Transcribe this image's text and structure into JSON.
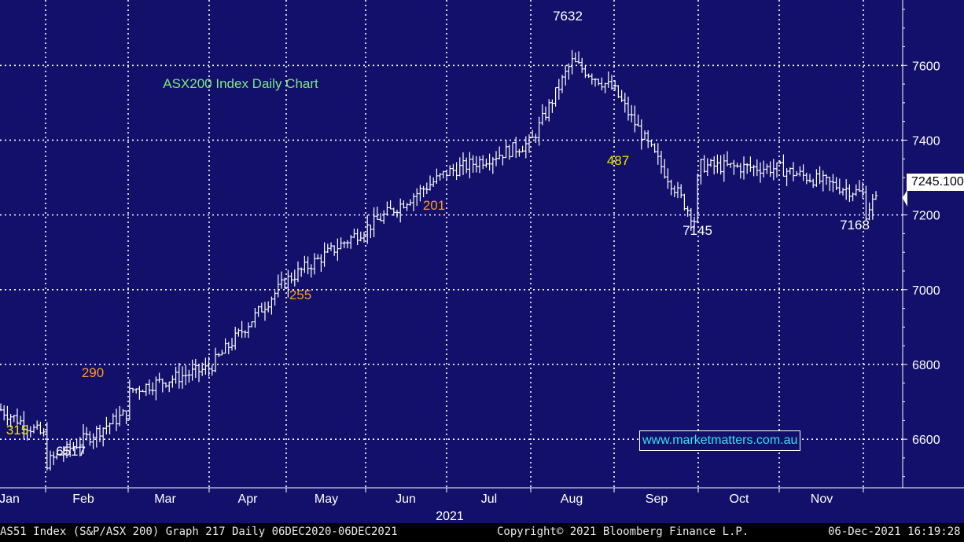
{
  "chart_data": {
    "type": "bar",
    "subtype": "ohlc",
    "title": "ASX200 Index Daily Chart",
    "x_axis": {
      "labels": [
        "Jan",
        "Feb",
        "Mar",
        "Apr",
        "May",
        "Jun",
        "Jul",
        "Aug",
        "Sep",
        "Oct",
        "Nov"
      ],
      "year_label": "2021"
    },
    "y_axis": {
      "ticks": [
        6600,
        6800,
        7000,
        7200,
        7400,
        7600
      ],
      "range": [
        6470,
        7775
      ],
      "position": "right"
    },
    "grid": true,
    "last_value_label": "7245.100",
    "last_value": 7245.1,
    "monthly_closes": [
      {
        "month": "Jan",
        "close": 6607
      },
      {
        "month": "Feb",
        "close": 6673
      },
      {
        "month": "Mar",
        "close": 6790
      },
      {
        "month": "Apr",
        "close": 7025
      },
      {
        "month": "May",
        "close": 7164
      },
      {
        "month": "Jun",
        "close": 7313
      },
      {
        "month": "Jul",
        "close": 7393
      },
      {
        "month": "Aug",
        "close": 7535
      },
      {
        "month": "Sep",
        "close": 7332
      },
      {
        "month": "Oct",
        "close": 7324
      },
      {
        "month": "Nov",
        "close": 7256
      }
    ],
    "annotations": [
      {
        "text": "7632",
        "value": 7632,
        "color": "#ffffff"
      },
      {
        "text": "6517",
        "value": 6517,
        "color": "#ffffff"
      },
      {
        "text": "7145",
        "value": 7145,
        "color": "#ffffff"
      },
      {
        "text": "7168",
        "value": 7168,
        "color": "#ffffff"
      },
      {
        "text": "315",
        "color": "#f2e600"
      },
      {
        "text": "290",
        "color": "#ff9a1f"
      },
      {
        "text": "255",
        "color": "#ff9a1f"
      },
      {
        "text": "201",
        "color": "#ff9a1f"
      },
      {
        "text": "487",
        "color": "#f2e600"
      }
    ],
    "colors": {
      "background": "#12106a",
      "grid": "#ffffff",
      "bars": "#ffffff",
      "title": "#7ee87e",
      "website": "#38e0f0"
    }
  },
  "watermark": "www.marketmatters.com.au",
  "footer": {
    "left": "AS51 Index (S&P/ASX 200) Graph 217  Daily 06DEC2020-06DEC2021",
    "center": "Copyright© 2021 Bloomberg Finance L.P.",
    "right": "06-Dec-2021 16:19:28"
  }
}
